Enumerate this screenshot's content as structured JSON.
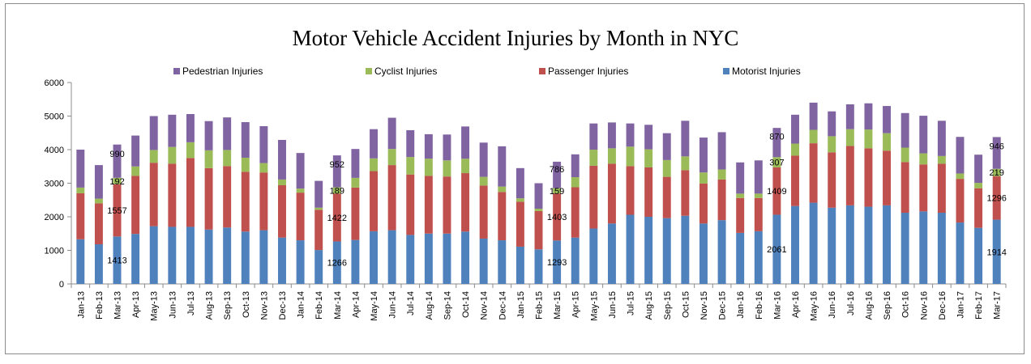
{
  "chart_data": {
    "type": "bar",
    "stacked": true,
    "title": "Motor Vehicle Accident Injuries by Month in NYC",
    "xlabel": "",
    "ylabel": "",
    "ylim": [
      0,
      6000
    ],
    "yticks": [
      0,
      1000,
      2000,
      3000,
      4000,
      5000,
      6000
    ],
    "grid": false,
    "legend_position": "top",
    "categories": [
      "Jan-13",
      "Feb-13",
      "Mar-13",
      "Apr-13",
      "May-13",
      "Jun-13",
      "Jul-13",
      "Aug-13",
      "Sep-13",
      "Oct-13",
      "Nov-13",
      "Dec-13",
      "Jan-14",
      "Feb-14",
      "Mar-14",
      "Apr-14",
      "May-14",
      "Jun-14",
      "Jul-14",
      "Aug-14",
      "Sep-14",
      "Oct-14",
      "Nov-14",
      "Dec-14",
      "Jan-15",
      "Feb-15",
      "Mar-15",
      "Apr-15",
      "May-15",
      "Jun-15",
      "Jul-15",
      "Aug-15",
      "Sep-15",
      "Oct-15",
      "Nov-15",
      "Dec-15",
      "Jan-16",
      "Feb-16",
      "Mar-16",
      "Apr-16",
      "May-16",
      "Jun-16",
      "Jul-16",
      "Aug-16",
      "Sep-16",
      "Oct-16",
      "Nov-16",
      "Dec-16",
      "Jan-17",
      "Feb-17",
      "Mar-17"
    ],
    "series": [
      {
        "name": "Motorist Injuries",
        "color": "#4f81bd",
        "values": [
          1330,
          1180,
          1413,
          1490,
          1720,
          1700,
          1700,
          1620,
          1680,
          1560,
          1600,
          1380,
          1300,
          1010,
          1266,
          1310,
          1570,
          1600,
          1460,
          1500,
          1500,
          1560,
          1350,
          1300,
          1110,
          1030,
          1293,
          1380,
          1650,
          1800,
          2060,
          2000,
          1960,
          2030,
          1800,
          1900,
          1520,
          1570,
          2061,
          2320,
          2420,
          2270,
          2340,
          2300,
          2340,
          2120,
          2160,
          2120,
          1830,
          1670,
          1914
        ]
      },
      {
        "name": "Passenger Injuries",
        "color": "#c0504d",
        "values": [
          1370,
          1220,
          1557,
          1730,
          1890,
          1880,
          2050,
          1830,
          1830,
          1780,
          1720,
          1560,
          1420,
          1200,
          1422,
          1560,
          1790,
          1940,
          1800,
          1720,
          1700,
          1740,
          1580,
          1440,
          1340,
          1140,
          1403,
          1500,
          1870,
          1780,
          1450,
          1470,
          1230,
          1360,
          1190,
          1210,
          1040,
          990,
          1409,
          1500,
          1770,
          1650,
          1770,
          1740,
          1630,
          1510,
          1400,
          1460,
          1300,
          1180,
          1296
        ]
      },
      {
        "name": "Cyclist Injuries",
        "color": "#9bbb59",
        "values": [
          170,
          140,
          192,
          280,
          380,
          500,
          470,
          530,
          480,
          420,
          280,
          170,
          120,
          60,
          189,
          290,
          380,
          480,
          520,
          510,
          480,
          430,
          260,
          160,
          100,
          70,
          159,
          300,
          480,
          460,
          580,
          540,
          500,
          410,
          330,
          300,
          130,
          130,
          307,
          360,
          400,
          480,
          500,
          560,
          520,
          430,
          330,
          230,
          160,
          160,
          219
        ]
      },
      {
        "name": "Pedestrian Injuries",
        "color": "#8064a2",
        "values": [
          1130,
          1000,
          990,
          920,
          1010,
          960,
          840,
          870,
          970,
          1060,
          1100,
          1180,
          1060,
          800,
          952,
          860,
          870,
          930,
          800,
          730,
          770,
          960,
          1020,
          1200,
          900,
          760,
          786,
          680,
          780,
          770,
          690,
          730,
          800,
          1060,
          1040,
          1110,
          930,
          990,
          870,
          860,
          810,
          740,
          740,
          780,
          810,
          1030,
          1120,
          1050,
          1090,
          840,
          946
        ]
      }
    ],
    "data_labels": [
      {
        "category": "Mar-13",
        "values": [
          "1413",
          "1557",
          "192",
          "990"
        ]
      },
      {
        "category": "Mar-14",
        "values": [
          "1266",
          "1422",
          "189",
          "952"
        ]
      },
      {
        "category": "Mar-15",
        "values": [
          "1293",
          "1403",
          "159",
          "786"
        ]
      },
      {
        "category": "Mar-16",
        "values": [
          "2061",
          "1409",
          "307",
          "870"
        ]
      },
      {
        "category": "Mar-17",
        "values": [
          "1914",
          "1296",
          "219",
          "946"
        ]
      }
    ]
  }
}
